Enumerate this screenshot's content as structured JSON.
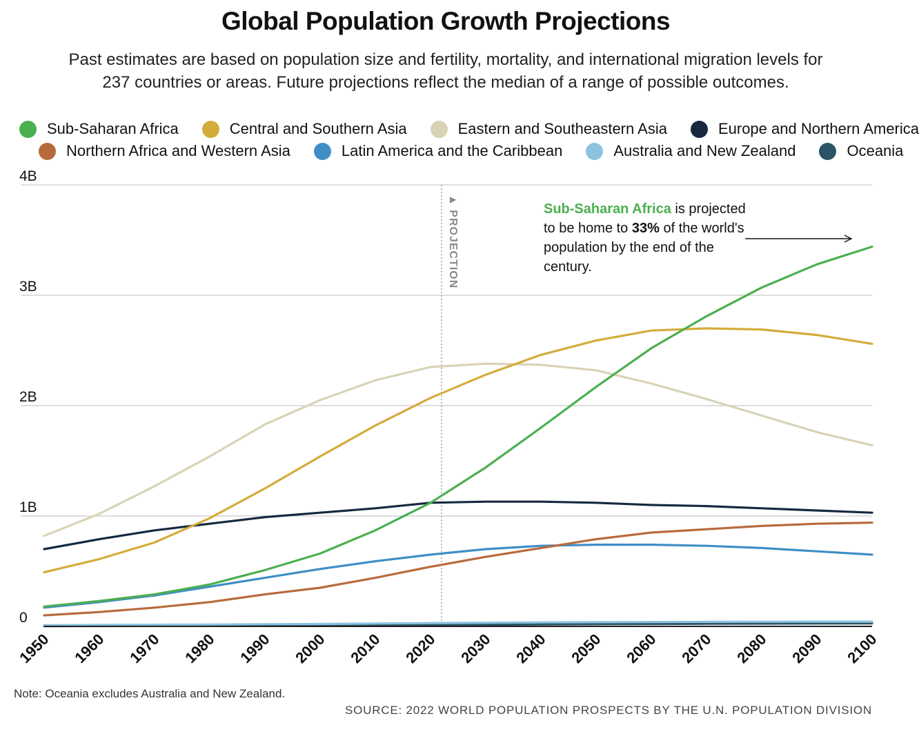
{
  "title": "Global Population Growth Projections",
  "subtitle_line1": "Past estimates are based on population size and fertility, mortality, and international migration levels for",
  "subtitle_line2": "237 countries or areas. Future projections reflect the median of a range of possible outcomes.",
  "note": "Note: Oceania excludes Australia and New Zealand.",
  "source": "SOURCE: 2022 WORLD POPULATION PROSPECTS BY THE U.N. POPULATION DIVISION",
  "annotation": {
    "highlight": "Sub-Saharan Africa",
    "part1": " is projected to be home to ",
    "percent": "33%",
    "part2": " of the world's population by the end of the century."
  },
  "projection_label": "▲ PROJECTION",
  "chart_data": {
    "type": "line",
    "x_label": "",
    "y_label": "",
    "xlim": [
      1950,
      2100
    ],
    "ylim": [
      0,
      4000000000
    ],
    "projection_start_year": 2022,
    "x_ticks": [
      "1950",
      "1960",
      "1970",
      "1980",
      "1990",
      "2000",
      "2010",
      "2020",
      "2030",
      "2040",
      "2050",
      "2060",
      "2070",
      "2080",
      "2090",
      "2100"
    ],
    "y_ticks": [
      {
        "value": 0,
        "label": "0"
      },
      {
        "value": 1000000000,
        "label": "1B"
      },
      {
        "value": 2000000000,
        "label": "2B"
      },
      {
        "value": 3000000000,
        "label": "3B"
      },
      {
        "value": 4000000000,
        "label": "4B"
      }
    ],
    "grid": true,
    "legend_position": "top",
    "x": [
      1950,
      1960,
      1970,
      1980,
      1990,
      2000,
      2010,
      2020,
      2030,
      2040,
      2050,
      2060,
      2070,
      2080,
      2090,
      2100
    ],
    "series": [
      {
        "name": "Sub-Saharan Africa",
        "color": "#4caf50",
        "values": [
          180000000,
          230000000,
          290000000,
          380000000,
          510000000,
          660000000,
          870000000,
          1120000000,
          1440000000,
          1800000000,
          2170000000,
          2520000000,
          2810000000,
          3070000000,
          3280000000,
          3440000000
        ]
      },
      {
        "name": "Central and Southern Asia",
        "color": "#d4ac3a",
        "values": [
          490000000,
          610000000,
          760000000,
          980000000,
          1250000000,
          1540000000,
          1820000000,
          2070000000,
          2280000000,
          2460000000,
          2590000000,
          2680000000,
          2700000000,
          2690000000,
          2640000000,
          2560000000
        ]
      },
      {
        "name": "Eastern and Southeastern Asia",
        "color": "#d8d3b6",
        "values": [
          820000000,
          1020000000,
          1270000000,
          1540000000,
          1830000000,
          2050000000,
          2230000000,
          2350000000,
          2380000000,
          2370000000,
          2320000000,
          2200000000,
          2060000000,
          1910000000,
          1760000000,
          1640000000
        ]
      },
      {
        "name": "Europe and Northern America",
        "color": "#15293f",
        "values": [
          700000000,
          790000000,
          870000000,
          930000000,
          990000000,
          1030000000,
          1070000000,
          1120000000,
          1130000000,
          1130000000,
          1120000000,
          1100000000,
          1090000000,
          1070000000,
          1050000000,
          1030000000
        ]
      },
      {
        "name": "Northern Africa and Western Asia",
        "color": "#b86a3c",
        "values": [
          100000000,
          130000000,
          170000000,
          220000000,
          290000000,
          350000000,
          440000000,
          540000000,
          630000000,
          710000000,
          790000000,
          850000000,
          880000000,
          910000000,
          930000000,
          940000000
        ]
      },
      {
        "name": "Latin America and the Caribbean",
        "color": "#3f8ec6",
        "values": [
          170000000,
          220000000,
          280000000,
          360000000,
          440000000,
          520000000,
          590000000,
          650000000,
          700000000,
          730000000,
          740000000,
          740000000,
          730000000,
          710000000,
          680000000,
          650000000
        ]
      },
      {
        "name": "Australia and New Zealand",
        "color": "#8cc3e0",
        "values": [
          10000000,
          13000000,
          15000000,
          17000000,
          20000000,
          22000000,
          26000000,
          30000000,
          33000000,
          36000000,
          38000000,
          40000000,
          41000000,
          42000000,
          43000000,
          43000000
        ]
      },
      {
        "name": "Oceania",
        "color": "#2a5566",
        "values": [
          2000000,
          3000000,
          4000000,
          5000000,
          6000000,
          8000000,
          10000000,
          13000000,
          15000000,
          18000000,
          20000000,
          22000000,
          24000000,
          25000000,
          26000000,
          27000000
        ]
      }
    ]
  }
}
